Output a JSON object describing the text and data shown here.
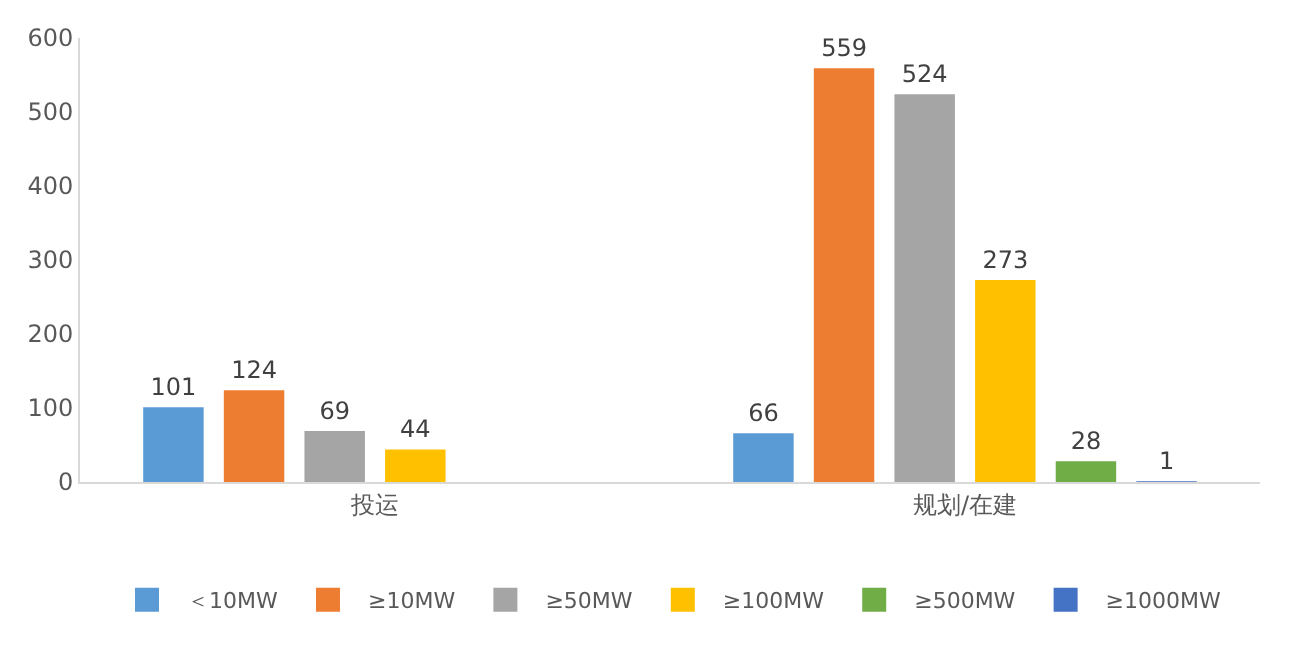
{
  "chart_data": {
    "type": "bar",
    "categories": [
      "投运",
      "规划/在建"
    ],
    "series": [
      {
        "name": "＜10MW",
        "color": "#5b9bd5",
        "values": [
          101,
          66
        ]
      },
      {
        "name": "≥10MW",
        "color": "#ed7d31",
        "values": [
          124,
          559
        ]
      },
      {
        "name": "≥50MW",
        "color": "#a5a5a5",
        "values": [
          69,
          524
        ]
      },
      {
        "name": "≥100MW",
        "color": "#ffc000",
        "values": [
          44,
          273
        ]
      },
      {
        "name": "≥500MW",
        "color": "#70ad47",
        "values": [
          null,
          28
        ]
      },
      {
        "name": "≥1000MW",
        "color": "#4472c4",
        "values": [
          null,
          1
        ]
      }
    ],
    "ylim": [
      0,
      600
    ],
    "yticks": [
      0,
      100,
      200,
      300,
      400,
      500,
      600
    ],
    "grid": false,
    "legend": "bottom",
    "data_labels": true
  }
}
